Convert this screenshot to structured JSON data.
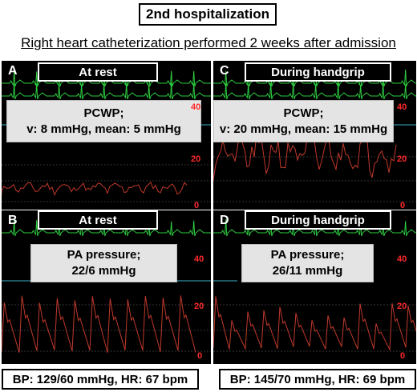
{
  "header": {
    "title": "2nd hospitalization",
    "subtitle": "Right heart catheterization performed 2 weeks after admission"
  },
  "panels": [
    {
      "letter": "A",
      "condition": "At rest",
      "label_line1": "PCWP;",
      "label_line2": "v: 8 mmHg, mean: 5 mmHg",
      "scale_top": "40",
      "scale_mid": "20",
      "scale_bottom": "0"
    },
    {
      "letter": "C",
      "condition": "During handgrip",
      "label_line1": "PCWP;",
      "label_line2": "v: 20 mmHg, mean: 15 mmHg",
      "scale_top": "40",
      "scale_mid": "20",
      "scale_bottom": "0"
    },
    {
      "letter": "B",
      "condition": "At rest",
      "label_line1": "PA pressure;",
      "label_line2": "22/6 mmHg",
      "scale_top": "40",
      "scale_mid": "20",
      "scale_bottom": "0"
    },
    {
      "letter": "D",
      "condition": "During handgrip",
      "label_line1": "PA pressure;",
      "label_line2": "26/11 mmHg",
      "scale_top": "40",
      "scale_mid": "20",
      "scale_bottom": "0"
    }
  ],
  "footer": {
    "left": "BP: 129/60 mmHg, HR: 67 bpm",
    "right": "BP: 145/70 mmHg, HR: 69 bpm"
  },
  "colors": {
    "ecg": "#2ecc40",
    "pressure": "#c0392b",
    "scale": "#ff2a2a",
    "spo2": "#3ab0c8"
  }
}
